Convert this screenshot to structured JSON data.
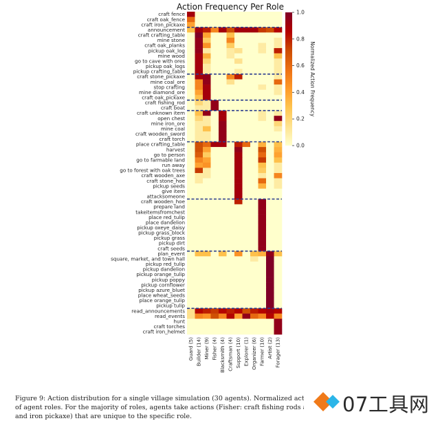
{
  "chart_data": {
    "type": "heatmap",
    "title": "Action Frequency Per Role",
    "colorbar": {
      "label": "Normalized Action Frequency",
      "range": [
        0.0,
        1.0
      ],
      "ticks": [
        "0.0",
        "0.2",
        "0.4",
        "0.6",
        "0.8",
        "1.0"
      ],
      "colormap": [
        "#ffffcc",
        "#fee391",
        "#fec44f",
        "#fe9929",
        "#ec7014",
        "#cc4c02",
        "#b30000",
        "#800026"
      ]
    },
    "columns": [
      "Guard (5)",
      "Builder (14)",
      "Miner (9)",
      "Fisher (4)",
      "Blacksmith (4)",
      "Craftsman (4)",
      "Support (10)",
      "Explorer (1)",
      "Organizer (6)",
      "Farmer (10)",
      "Artist (2)",
      "Forager (13)"
    ],
    "rows": [
      "craft fence",
      "craft oak_fence",
      "craft iron_pickaxe",
      "announcement",
      "craft crafting_table",
      "mine stone",
      "craft oak_planks",
      "pickup oak_log",
      "mine wood",
      "go to cave with ores",
      "pickup oak_logs",
      "pickup crafting_table",
      "craft stone_pickaxe",
      "mine coal_ore",
      "stop crafting",
      "mine diamond_ore",
      "craft oak_pickaxe",
      "craft fishing_rod",
      "craft boat",
      "craft unknown item",
      "open chest",
      "mine iron_ore",
      "mine coal",
      "craft wooden_sword",
      "craft torch",
      "place crafting_table",
      "harvest",
      "go to person",
      "go to farmable land",
      "run away",
      "go to forest with oak trees",
      "craft wooden_axe",
      "craft stone_hoe",
      "pickup seeds",
      "give item",
      "attacksomeone",
      "craft wooden_hoe",
      "prepare land",
      "takeitemsfromchest",
      "place red_tulip",
      "place dandelion",
      "pickup oxeye_daisy",
      "pickup grass_block",
      "pickup grass",
      "pickup dirt",
      "craft seeds",
      "plan_event",
      "square, market, and town hall",
      "pickup red_tulip",
      "pickup dandelion",
      "pickup orange_tulip",
      "pickup poppy",
      "pickup cornflower",
      "pickup azure_bluet",
      "place wheat_seeds",
      "place orange_tulip",
      "pickup tulip",
      "read_announcements",
      "read_events",
      "hunt",
      "craft torches",
      "craft iron_helmet"
    ],
    "group_separators_after_row": [
      2,
      11,
      16,
      18,
      24,
      35,
      45,
      56
    ],
    "values": [
      [
        0.9,
        0,
        0,
        0,
        0,
        0,
        0,
        0,
        0,
        0,
        0,
        0
      ],
      [
        0.6,
        0,
        0,
        0,
        0,
        0,
        0,
        0,
        0,
        0,
        0,
        0
      ],
      [
        0.4,
        0,
        0,
        0,
        0,
        0,
        0,
        0,
        0,
        0,
        0,
        0
      ],
      [
        0.3,
        0.9,
        0.8,
        0.5,
        0.9,
        0.7,
        0.9,
        0.9,
        0.9,
        0.75,
        0.7,
        0.85
      ],
      [
        0,
        1.0,
        0.4,
        0,
        0,
        0.3,
        0,
        0,
        0,
        0,
        0,
        0
      ],
      [
        0,
        0.95,
        0.25,
        0,
        0,
        0.5,
        0,
        0,
        0,
        0,
        0,
        0.1
      ],
      [
        0,
        0.95,
        0.45,
        0,
        0,
        0.25,
        0,
        0,
        0,
        0.1,
        0,
        0.1
      ],
      [
        0,
        0.95,
        0.1,
        0,
        0,
        0.1,
        0.15,
        0,
        0,
        0.1,
        0,
        0.8
      ],
      [
        0,
        0.9,
        0.35,
        0,
        0,
        0.1,
        0,
        0,
        0,
        0,
        0,
        0.3
      ],
      [
        0,
        0.9,
        0.2,
        0,
        0,
        0,
        0.15,
        0,
        0,
        0,
        0,
        0.1
      ],
      [
        0,
        0.9,
        0.1,
        0,
        0,
        0,
        0,
        0,
        0,
        0,
        0,
        0.1
      ],
      [
        0,
        0.9,
        0.1,
        0,
        0,
        0,
        0.1,
        0,
        0,
        0,
        0,
        0.1
      ],
      [
        0,
        0.9,
        0.95,
        0,
        0,
        0.5,
        0.8,
        0,
        0,
        0,
        0,
        0.1
      ],
      [
        0,
        0.5,
        0.95,
        0,
        0,
        0.15,
        0,
        0,
        0,
        0,
        0,
        0.6
      ],
      [
        0,
        0.5,
        0.9,
        0,
        0,
        0,
        0,
        0,
        0,
        0.1,
        0,
        0.1
      ],
      [
        0,
        0.4,
        0.9,
        0,
        0,
        0,
        0,
        0,
        0,
        0,
        0,
        0.1
      ],
      [
        0,
        0.3,
        0.9,
        0,
        0,
        0,
        0,
        0,
        0,
        0,
        0,
        0
      ],
      [
        0,
        0.2,
        0.1,
        0.95,
        0,
        0,
        0,
        0,
        0,
        0,
        0,
        0
      ],
      [
        0,
        0.1,
        0.1,
        0.95,
        0,
        0,
        0,
        0,
        0,
        0,
        0,
        0
      ],
      [
        0,
        0.3,
        0.95,
        0,
        0.9,
        0,
        0,
        0,
        0,
        0.1,
        0,
        0.1
      ],
      [
        0,
        0.2,
        0.1,
        0,
        0.9,
        0,
        0,
        0,
        0,
        0.1,
        0,
        0.95
      ],
      [
        0,
        0.1,
        0.1,
        0,
        0.95,
        0,
        0,
        0,
        0,
        0,
        0,
        0.2
      ],
      [
        0,
        0.1,
        0.3,
        0,
        0.95,
        0,
        0,
        0,
        0,
        0,
        0,
        0.1
      ],
      [
        0,
        0.1,
        0.1,
        0,
        0.95,
        0,
        0,
        0,
        0,
        0,
        0,
        0
      ],
      [
        0,
        0.1,
        0.1,
        0,
        0.95,
        0,
        0,
        0,
        0,
        0,
        0,
        0
      ],
      [
        0,
        0.7,
        0.6,
        0.9,
        0.9,
        0,
        0.8,
        0.6,
        0,
        0.35,
        0,
        0.3
      ],
      [
        0,
        0.7,
        0.4,
        0,
        0,
        0,
        0.95,
        0,
        0,
        0.7,
        0,
        0.35
      ],
      [
        0,
        0.65,
        0.25,
        0,
        0,
        0,
        0.9,
        0,
        0,
        0.6,
        0,
        0.4
      ],
      [
        0,
        0.5,
        0.4,
        0,
        0,
        0,
        0.9,
        0,
        0,
        0.75,
        0,
        0.3
      ],
      [
        0,
        0.4,
        0.45,
        0,
        0,
        0,
        0.9,
        0,
        0,
        0.3,
        0,
        0.1
      ],
      [
        0,
        0.75,
        0.1,
        0,
        0,
        0,
        0.9,
        0,
        0,
        0.25,
        0,
        0.1
      ],
      [
        0,
        0.1,
        0.1,
        0,
        0,
        0,
        0.9,
        0,
        0,
        0.1,
        0,
        0.5
      ],
      [
        0,
        0.1,
        0,
        0,
        0,
        0,
        0.9,
        0,
        0,
        0.6,
        0,
        0.1
      ],
      [
        0,
        0,
        0,
        0,
        0,
        0,
        0.9,
        0,
        0,
        0.35,
        0,
        0.1
      ],
      [
        0,
        0,
        0,
        0,
        0,
        0,
        0.9,
        0,
        0,
        0,
        0,
        0
      ],
      [
        0,
        0,
        0,
        0,
        0,
        0,
        0.9,
        0,
        0,
        0,
        0,
        0
      ],
      [
        0,
        0,
        0,
        0,
        0,
        0,
        0.8,
        0,
        0,
        0.95,
        0,
        0
      ],
      [
        0,
        0,
        0,
        0,
        0,
        0,
        0,
        0,
        0,
        0.95,
        0,
        0
      ],
      [
        0,
        0,
        0,
        0,
        0,
        0,
        0,
        0,
        0,
        0.95,
        0,
        0
      ],
      [
        0,
        0,
        0,
        0,
        0,
        0,
        0,
        0,
        0,
        0.95,
        0,
        0
      ],
      [
        0,
        0,
        0,
        0,
        0,
        0,
        0,
        0,
        0,
        0.95,
        0,
        0
      ],
      [
        0,
        0,
        0,
        0,
        0,
        0,
        0,
        0,
        0,
        0.95,
        0,
        0
      ],
      [
        0,
        0,
        0,
        0,
        0,
        0,
        0,
        0,
        0,
        0.95,
        0,
        0
      ],
      [
        0,
        0,
        0,
        0,
        0,
        0,
        0,
        0,
        0,
        0.95,
        0,
        0
      ],
      [
        0,
        0,
        0,
        0,
        0,
        0,
        0,
        0,
        0,
        0.95,
        0,
        0
      ],
      [
        0,
        0,
        0,
        0,
        0,
        0,
        0,
        0,
        0,
        0.95,
        0,
        0
      ],
      [
        0,
        0.3,
        0.3,
        0,
        0.3,
        0,
        0.45,
        0,
        0.3,
        0.35,
        0.95,
        0.3
      ],
      [
        0,
        0,
        0,
        0,
        0,
        0,
        0,
        0,
        0.1,
        0,
        1.0,
        0
      ],
      [
        0,
        0,
        0,
        0,
        0,
        0,
        0,
        0,
        0,
        0,
        1.0,
        0
      ],
      [
        0,
        0,
        0,
        0,
        0,
        0,
        0,
        0,
        0,
        0,
        1.0,
        0
      ],
      [
        0,
        0,
        0,
        0,
        0,
        0,
        0,
        0,
        0,
        0,
        1.0,
        0
      ],
      [
        0,
        0,
        0,
        0,
        0,
        0,
        0,
        0,
        0,
        0,
        1.0,
        0
      ],
      [
        0,
        0,
        0,
        0,
        0,
        0,
        0,
        0,
        0,
        0,
        1.0,
        0
      ],
      [
        0,
        0,
        0,
        0,
        0,
        0,
        0,
        0,
        0,
        0,
        1.0,
        0
      ],
      [
        0,
        0,
        0,
        0,
        0,
        0,
        0,
        0,
        0,
        0,
        1.0,
        0
      ],
      [
        0,
        0,
        0,
        0,
        0,
        0,
        0,
        0,
        0,
        0,
        1.0,
        0
      ],
      [
        0,
        0,
        0,
        0,
        0,
        0,
        0,
        0,
        0,
        0,
        1.0,
        0
      ],
      [
        0.15,
        0.85,
        0.8,
        0.75,
        0.85,
        0.8,
        0.85,
        0.7,
        0.8,
        0.85,
        0.9,
        0.85
      ],
      [
        0.15,
        0.5,
        0.45,
        0.7,
        0.5,
        0.85,
        0.4,
        0.95,
        0.6,
        0.5,
        0.85,
        0.5
      ],
      [
        0,
        0,
        0,
        0,
        0,
        0,
        0,
        0,
        0,
        0,
        0,
        0.95
      ],
      [
        0,
        0,
        0,
        0,
        0,
        0,
        0,
        0,
        0,
        0,
        0,
        0.95
      ],
      [
        0,
        0,
        0,
        0,
        0,
        0,
        0,
        0,
        0,
        0,
        0,
        0.95
      ]
    ]
  },
  "caption": {
    "line1": "Figure 9: Action distribution for a single village simulation (30 agents). Normalized act",
    "line2": "of agent roles.  For the majority of roles, agents take actions (Fisher: craft fishing rods anc",
    "line3": "and iron pickaxe) that are unique to the specific role."
  },
  "watermark": {
    "text": "07工具网",
    "colors": [
      "#f07a1a",
      "#2bb5e8"
    ]
  }
}
